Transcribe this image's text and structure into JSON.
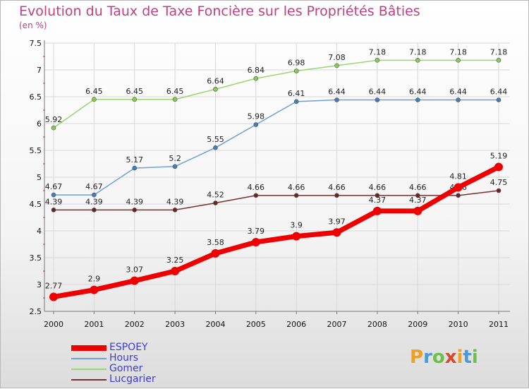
{
  "title": "Evolution du Taux de Taxe Foncière sur les Propriétés Bâties",
  "unit": "(en %)",
  "logo": {
    "text": "Proxiti",
    "letters": [
      {
        "ch": "P",
        "color": "#f0a020"
      },
      {
        "ch": "r",
        "color": "#4a9ad8"
      },
      {
        "ch": "o",
        "color": "#6cc04a"
      },
      {
        "ch": "x",
        "color": "#d8482a"
      },
      {
        "ch": "i",
        "color": "#f0a020"
      },
      {
        "ch": "t",
        "color": "#4a9ad8"
      },
      {
        "ch": "i",
        "color": "#6cc04a"
      }
    ]
  },
  "chart_data": {
    "type": "line",
    "title": "Evolution du Taux de Taxe Foncière sur les Propriétés Bâties",
    "ylabel": "(en %)",
    "xlabel": "",
    "ylim": [
      2.5,
      7.5
    ],
    "yticks": [
      "2.5",
      "3",
      "3.5",
      "4",
      "4.5",
      "5",
      "5.5",
      "6",
      "6.5",
      "7",
      "7.5"
    ],
    "categories": [
      "2000",
      "2001",
      "2002",
      "2003",
      "2004",
      "2005",
      "2006",
      "2007",
      "2008",
      "2009",
      "2010",
      "2011"
    ],
    "grid": true,
    "series": [
      {
        "name": "Gomer",
        "color": "#88cc55",
        "line": "#99d870",
        "values": [
          5.92,
          6.45,
          6.45,
          6.45,
          6.64,
          6.84,
          6.98,
          7.08,
          7.18,
          7.18,
          7.18,
          7.18
        ],
        "labels": [
          "5.92",
          "6.45",
          "6.45",
          "6.45",
          "6.64",
          "6.84",
          "6.98",
          "7.08",
          "7.18",
          "7.18",
          "7.18",
          "7.18"
        ]
      },
      {
        "name": "Hours",
        "color": "#3f7fbf",
        "line": "#6fa0d4",
        "values": [
          4.67,
          4.67,
          5.17,
          5.2,
          5.55,
          5.98,
          6.41,
          6.44,
          6.44,
          6.44,
          6.44,
          6.44
        ],
        "labels": [
          "4.67",
          "4.67",
          "5.17",
          "5.2",
          "5.55",
          "5.98",
          "6.41",
          "6.44",
          "6.44",
          "6.44",
          "6.44",
          "6.44"
        ]
      },
      {
        "name": "Lucgarier",
        "color": "#6b2323",
        "line": "#7a3030",
        "values": [
          4.39,
          4.39,
          4.39,
          4.39,
          4.52,
          4.66,
          4.66,
          4.66,
          4.66,
          4.66,
          4.66,
          4.75
        ],
        "labels": [
          "4.39",
          "4.39",
          "4.39",
          "4.39",
          "4.52",
          "4.66",
          "4.66",
          "4.66",
          "4.66",
          "4.66",
          "4.66",
          "4.75"
        ]
      },
      {
        "name": "ESPOEY",
        "color": "#ee0000",
        "line": "#ee0000",
        "values": [
          2.77,
          2.9,
          3.07,
          3.25,
          3.58,
          3.79,
          3.9,
          3.97,
          4.37,
          4.37,
          4.81,
          5.19
        ],
        "labels": [
          "2.77",
          "2.9",
          "3.07",
          "3.25",
          "3.58",
          "3.79",
          "3.9",
          "3.97",
          "4.37",
          "4.37",
          "4.81",
          "5.19"
        ]
      }
    ],
    "legend": [
      "ESPOEY",
      "Hours",
      "Gomer",
      "Lucgarier"
    ]
  }
}
